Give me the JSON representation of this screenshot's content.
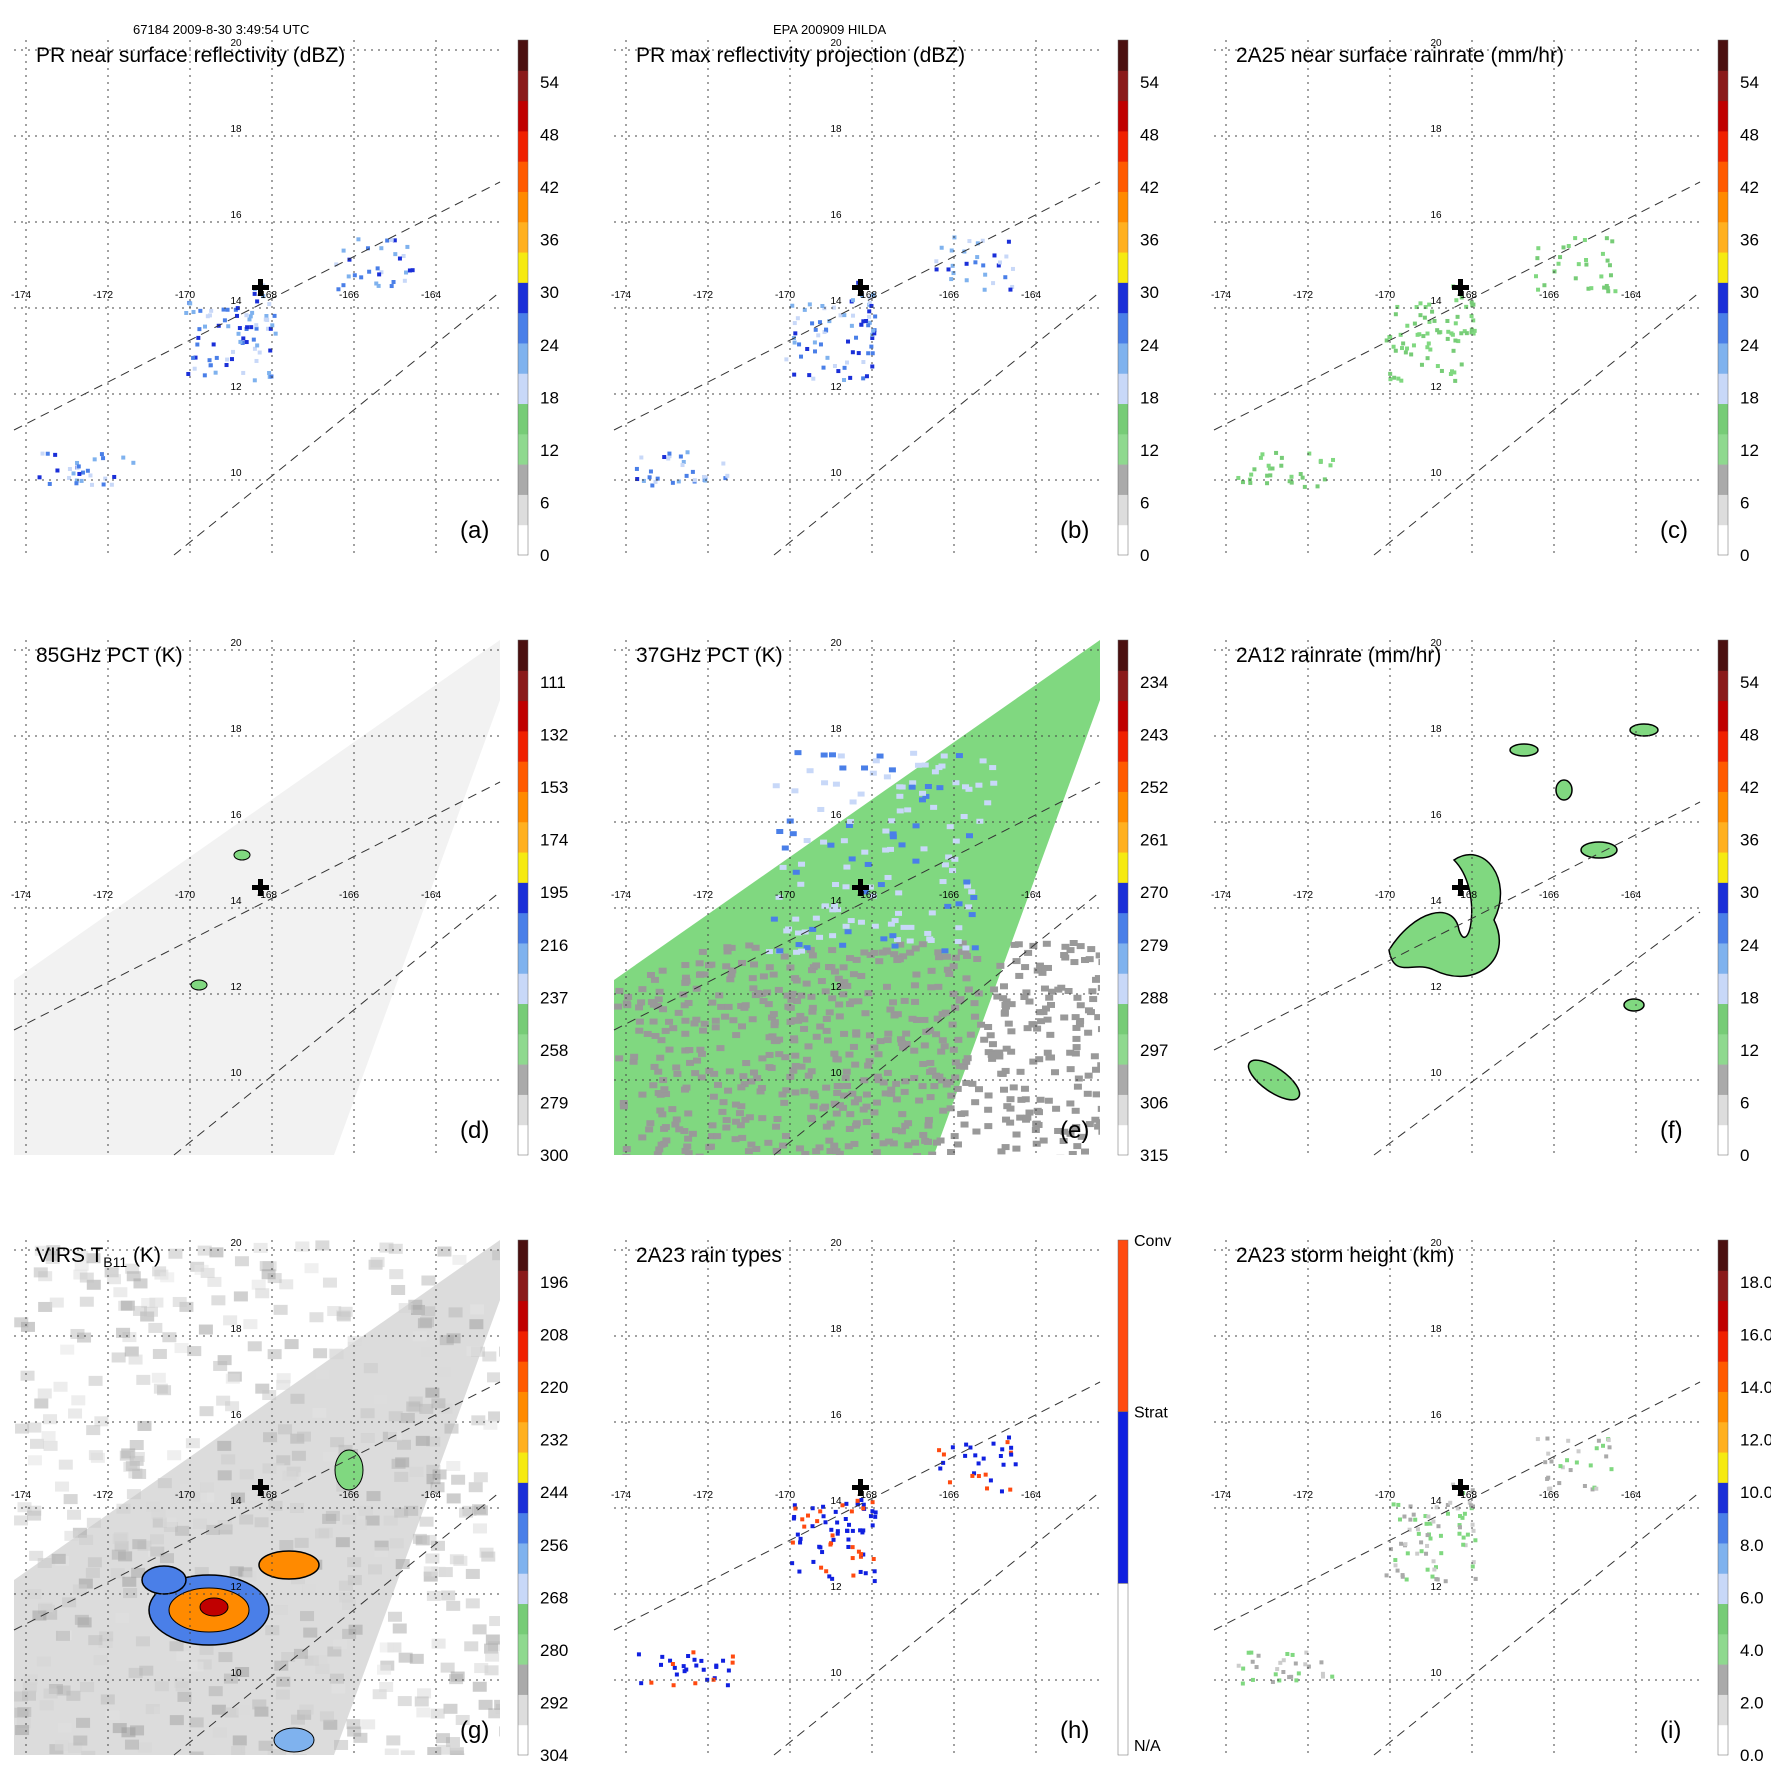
{
  "header": {
    "orbit_time": "67184 2009-8-30 3:49:54 UTC",
    "event": "EPA 200909 HILDA"
  },
  "grid": {
    "lon_labels": [
      "-174",
      "-172",
      "-170",
      "-168",
      "-166",
      "-164"
    ],
    "lat_labels": [
      "10",
      "12",
      "14",
      "16",
      "18",
      "20"
    ]
  },
  "palettes": {
    "scale_12": [
      "#ffffff",
      "#dddddd",
      "#aaaaaa",
      "#8fd98f",
      "#77cc77",
      "#c8d8f8",
      "#7fb2ee",
      "#4a7fe8",
      "#1a2fd8",
      "#f6ea10",
      "#ffb020",
      "#ff8a00",
      "#ff5a00",
      "#f02000",
      "#c00000",
      "#8a1a1a",
      "#4a1010"
    ],
    "rain_types": [
      "#ffffff",
      "#1020e0",
      "#ff4a10"
    ]
  },
  "panels": [
    {
      "id": "a",
      "title": "PR near surface reflectivity (dBZ)",
      "letter": "(a)",
      "cbar_labels": [
        "0",
        "6",
        "12",
        "18",
        "24",
        "30",
        "36",
        "42",
        "48",
        "54"
      ],
      "swath": "narrow",
      "style": "sparse_blue"
    },
    {
      "id": "b",
      "title": "PR max reflectivity projection (dBZ)",
      "letter": "(b)",
      "cbar_labels": [
        "0",
        "6",
        "12",
        "18",
        "24",
        "30",
        "36",
        "42",
        "48",
        "54"
      ],
      "swath": "narrow",
      "style": "sparse_contour"
    },
    {
      "id": "c",
      "title": "2A25 near surface rainrate (mm/hr)",
      "letter": "(c)",
      "cbar_labels": [
        "0",
        "6",
        "12",
        "18",
        "24",
        "30",
        "36",
        "42",
        "48",
        "54"
      ],
      "swath": "narrow",
      "style": "sparse_green"
    },
    {
      "id": "d",
      "title": "85GHz PCT (K)",
      "letter": "(d)",
      "cbar_labels": [
        "300",
        "279",
        "258",
        "237",
        "216",
        "195",
        "174",
        "153",
        "132",
        "111"
      ],
      "swath": "wide",
      "style": "light_gray"
    },
    {
      "id": "e",
      "title": "37GHz PCT (K)",
      "letter": "(e)",
      "cbar_labels": [
        "315",
        "306",
        "297",
        "288",
        "279",
        "270",
        "261",
        "252",
        "243",
        "234"
      ],
      "swath": "wide",
      "style": "green_fill"
    },
    {
      "id": "f",
      "title": "2A12 rainrate (mm/hr)",
      "letter": "(f)",
      "cbar_labels": [
        "0",
        "6",
        "12",
        "18",
        "24",
        "30",
        "36",
        "42",
        "48",
        "54"
      ],
      "swath": "none",
      "style": "green_blobs"
    },
    {
      "id": "g",
      "title": "VIRS T",
      "title_sub": "B11",
      "title_suffix": " (K)",
      "letter": "(g)",
      "cbar_labels": [
        "304",
        "292",
        "280",
        "268",
        "256",
        "244",
        "232",
        "220",
        "208",
        "196"
      ],
      "swath": "wide",
      "style": "ir"
    },
    {
      "id": "h",
      "title": "2A23 rain types",
      "letter": "(h)",
      "cbar_labels": [
        "N/A",
        "Strat",
        "Conv"
      ],
      "swath": "narrow",
      "style": "rain_types"
    },
    {
      "id": "i",
      "title": "2A23 storm height (km)",
      "letter": "(i)",
      "cbar_labels": [
        "0.0",
        "2.0",
        "4.0",
        "6.0",
        "8.0",
        "10.0",
        "12.0",
        "14.0",
        "16.0",
        "18.0"
      ],
      "swath": "narrow",
      "style": "height"
    }
  ]
}
